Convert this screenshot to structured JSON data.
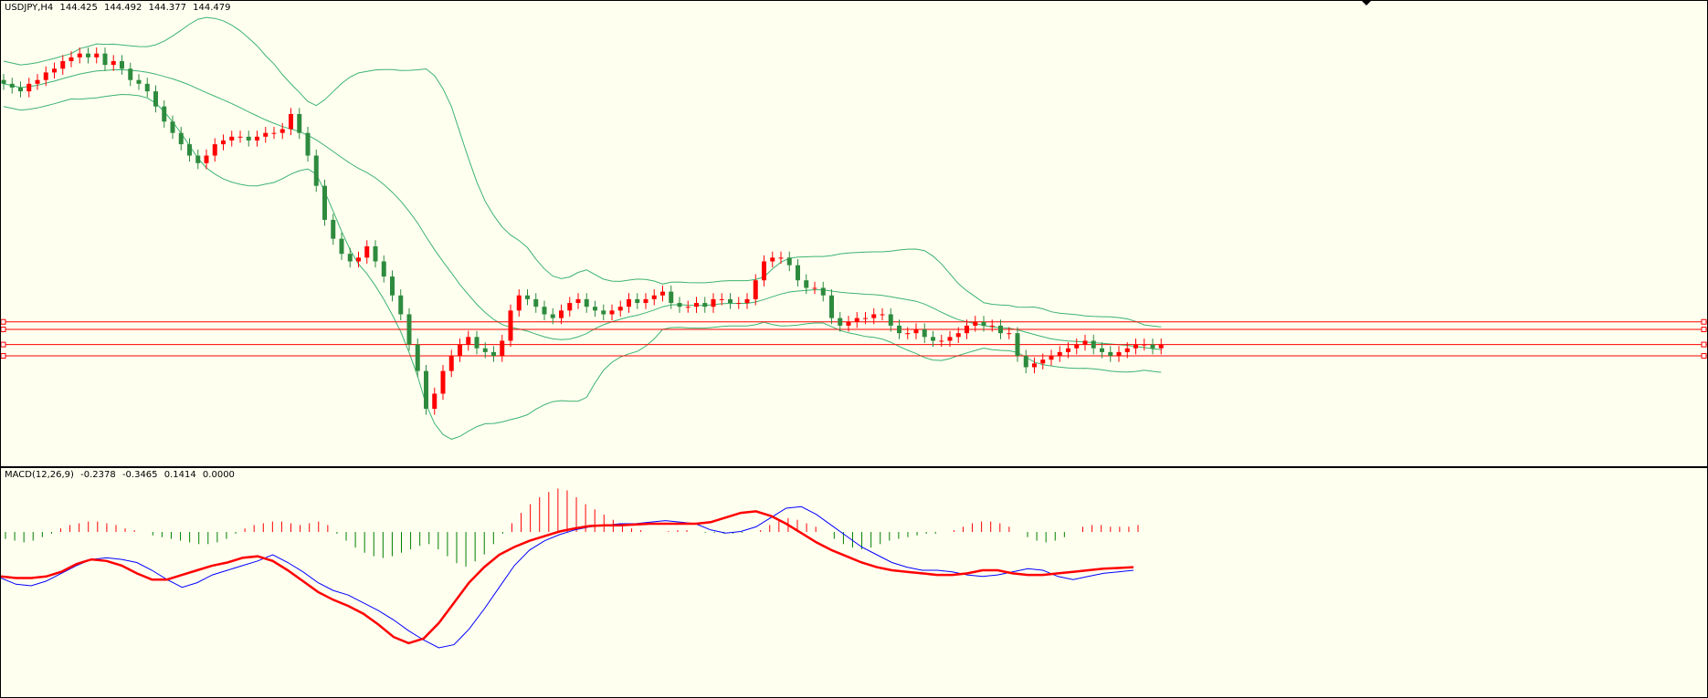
{
  "header": {
    "symbol": "USDJPY,H4",
    "open": "144.425",
    "high": "144.492",
    "low": "144.377",
    "close": "144.479"
  },
  "macd_header": {
    "name": "MACD(12,26,9)",
    "v1": "-0.2378",
    "v2": "-0.3465",
    "v3": "0.1414",
    "v4": "0.0000"
  },
  "colors": {
    "background": "#fffff0",
    "bull": "#ff0000",
    "bear": "#2e8b3e",
    "bands": "#3cb371",
    "macd_line": "#0000ff",
    "signal_line": "#ff0000",
    "hist_pos": "#ff0000",
    "hist_neg": "#008000",
    "level_lines": "#ff0000"
  },
  "chart_data": [
    {
      "type": "candlestick",
      "series": [
        {
          "name": "close",
          "values": [
            144.9,
            144.85,
            144.8,
            144.9,
            144.95,
            145.05,
            145.1,
            145.2,
            145.25,
            145.3,
            145.25,
            145.3,
            145.15,
            145.2,
            145.1,
            144.95,
            144.9,
            144.8,
            144.6,
            144.4,
            144.25,
            144.1,
            143.95,
            143.85,
            143.95,
            144.1,
            144.15,
            144.2,
            144.2,
            144.15,
            144.2,
            144.25,
            144.25,
            144.3,
            144.5,
            144.25,
            143.95,
            143.55,
            143.1,
            142.85,
            142.65,
            142.55,
            142.6,
            142.75,
            142.55,
            142.35,
            142.1,
            141.85,
            141.45,
            141.1,
            140.6,
            140.8,
            141.1,
            141.3,
            141.45,
            141.55,
            141.4,
            141.35,
            141.3,
            141.5,
            141.9,
            142.1,
            142.05,
            141.95,
            141.85,
            141.8,
            141.9,
            142.0,
            142.05,
            141.95,
            141.9,
            141.85,
            141.9,
            141.95,
            142.05,
            142.0,
            142.05,
            142.1,
            142.15,
            142.0,
            141.95,
            141.95,
            142.0,
            141.95,
            142.05,
            142.05,
            142.0,
            142.0,
            142.05,
            142.3,
            142.55,
            142.6,
            142.6,
            142.5,
            142.3,
            142.2,
            142.2,
            142.1,
            141.8,
            141.7,
            141.75,
            141.8,
            141.8,
            141.85,
            141.85,
            141.7,
            141.6,
            141.6,
            141.65,
            141.55,
            141.5,
            141.5,
            141.55,
            141.6,
            141.7,
            141.75,
            141.7,
            141.7,
            141.6,
            141.6,
            141.3,
            141.15,
            141.2,
            141.25,
            141.3,
            141.35,
            141.4,
            141.45,
            141.5,
            141.4,
            141.35,
            141.3,
            141.35,
            141.4,
            141.45,
            141.45,
            141.4,
            141.45
          ]
        }
      ],
      "bollinger": {
        "upper": "moving",
        "middle": "moving",
        "lower": "moving"
      },
      "horizontal_levels": [
        141.75,
        141.65,
        141.45,
        141.3
      ]
    },
    {
      "type": "macd",
      "series": [
        {
          "name": "histogram",
          "values": [
            -0.08,
            -0.1,
            -0.12,
            -0.1,
            -0.06,
            -0.02,
            0.04,
            0.08,
            0.1,
            0.12,
            0.12,
            0.1,
            0.08,
            0.04,
            0.02,
            0.0,
            -0.04,
            -0.06,
            -0.08,
            -0.1,
            -0.12,
            -0.14,
            -0.14,
            -0.12,
            -0.08,
            -0.02,
            0.04,
            0.08,
            0.1,
            0.12,
            0.12,
            0.1,
            0.08,
            0.1,
            0.12,
            0.08,
            -0.02,
            -0.1,
            -0.18,
            -0.24,
            -0.28,
            -0.3,
            -0.28,
            -0.24,
            -0.2,
            -0.16,
            -0.14,
            -0.2,
            -0.28,
            -0.36,
            -0.4,
            -0.34,
            -0.26,
            -0.14,
            -0.02,
            0.1,
            0.22,
            0.32,
            0.4,
            0.46,
            0.5,
            0.48,
            0.4,
            0.32,
            0.26,
            0.2,
            0.14,
            0.08,
            0.04,
            0.02,
            0.0,
            0.0,
            0.01,
            0.02,
            0.02,
            0.0,
            -0.01,
            -0.01,
            -0.02,
            -0.02,
            -0.01,
            0.0,
            0.02,
            0.08,
            0.14,
            0.16,
            0.14,
            0.1,
            0.06,
            0.0,
            -0.08,
            -0.14,
            -0.18,
            -0.2,
            -0.18,
            -0.14,
            -0.1,
            -0.08,
            -0.06,
            -0.04,
            -0.02,
            -0.02,
            0.0,
            0.02,
            0.06,
            0.1,
            0.12,
            0.12,
            0.1,
            0.06,
            0.0,
            -0.06,
            -0.1,
            -0.12,
            -0.1,
            -0.06,
            0.0,
            0.06,
            0.08,
            0.08,
            0.06,
            0.06,
            0.06,
            0.08
          ]
        },
        {
          "name": "macd",
          "values": [
            -0.3,
            -0.38,
            -0.4,
            -0.34,
            -0.24,
            -0.14,
            -0.06,
            -0.04,
            -0.06,
            -0.1,
            -0.2,
            -0.32,
            -0.42,
            -0.36,
            -0.26,
            -0.2,
            -0.14,
            -0.08,
            0.0,
            -0.1,
            -0.22,
            -0.36,
            -0.46,
            -0.52,
            -0.62,
            -0.72,
            -0.84,
            -0.98,
            -1.1,
            -1.2,
            -1.16,
            -0.96,
            -0.7,
            -0.42,
            -0.14,
            0.06,
            0.18,
            0.26,
            0.32,
            0.36,
            0.38,
            0.4,
            0.4,
            0.42,
            0.44,
            0.42,
            0.4,
            0.32,
            0.28,
            0.3,
            0.36,
            0.48,
            0.6,
            0.62,
            0.52,
            0.38,
            0.24,
            0.1,
            0.0,
            -0.1,
            -0.16,
            -0.2,
            -0.2,
            -0.22,
            -0.26,
            -0.28,
            -0.26,
            -0.22,
            -0.18,
            -0.2,
            -0.28,
            -0.32,
            -0.28,
            -0.24,
            -0.22,
            -0.2
          ]
        },
        {
          "name": "signal",
          "values": [
            -0.28,
            -0.3,
            -0.3,
            -0.28,
            -0.22,
            -0.12,
            -0.06,
            -0.08,
            -0.14,
            -0.24,
            -0.32,
            -0.32,
            -0.26,
            -0.2,
            -0.14,
            -0.1,
            -0.04,
            -0.02,
            -0.08,
            -0.2,
            -0.34,
            -0.48,
            -0.58,
            -0.66,
            -0.76,
            -0.9,
            -1.06,
            -1.14,
            -1.08,
            -0.88,
            -0.62,
            -0.36,
            -0.16,
            0.0,
            0.1,
            0.18,
            0.24,
            0.3,
            0.34,
            0.37,
            0.38,
            0.38,
            0.39,
            0.4,
            0.4,
            0.4,
            0.4,
            0.42,
            0.48,
            0.54,
            0.56,
            0.5,
            0.4,
            0.28,
            0.16,
            0.06,
            -0.02,
            -0.1,
            -0.16,
            -0.2,
            -0.22,
            -0.24,
            -0.26,
            -0.26,
            -0.24,
            -0.2,
            -0.2,
            -0.24,
            -0.26,
            -0.26,
            -0.24,
            -0.22,
            -0.2,
            -0.18,
            -0.17,
            -0.16
          ]
        }
      ]
    }
  ]
}
